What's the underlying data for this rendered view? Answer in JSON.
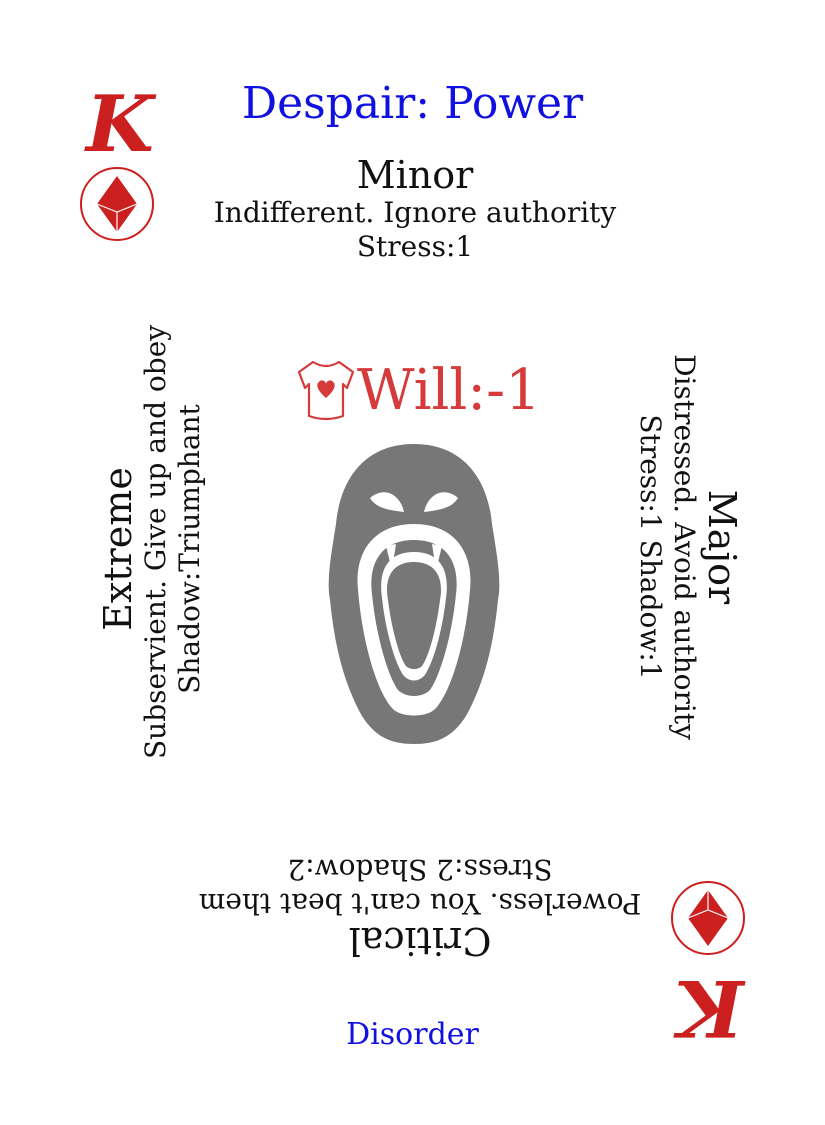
{
  "card": {
    "rank": "K",
    "suit_icon": "diamond-suit-icon",
    "title": "Despair: Power",
    "footer": "Disorder",
    "colors": {
      "accent": "#cc1f1f",
      "title": "#1010e0",
      "text": "#111111",
      "face": "#777777"
    }
  },
  "severities": {
    "minor": {
      "name": "Minor",
      "line1": "Indifferent. Ignore authority",
      "line2": "Stress:1"
    },
    "major": {
      "name": "Major",
      "line1": "Distressed. Avoid authority",
      "line2": "Stress:1 Shadow:1"
    },
    "critical": {
      "name": "Critical",
      "line1": "Powerless. You can't beat them",
      "line2": "Stress:2 Shadow:2"
    },
    "extreme": {
      "name": "Extreme",
      "line1": "Subservient. Give up and obey",
      "line2": "Shadow:Triumphant"
    }
  },
  "attribute": {
    "icon": "heart-torso-icon",
    "label": "Will:-1"
  },
  "illustration": {
    "icon": "screaming-face-icon"
  }
}
